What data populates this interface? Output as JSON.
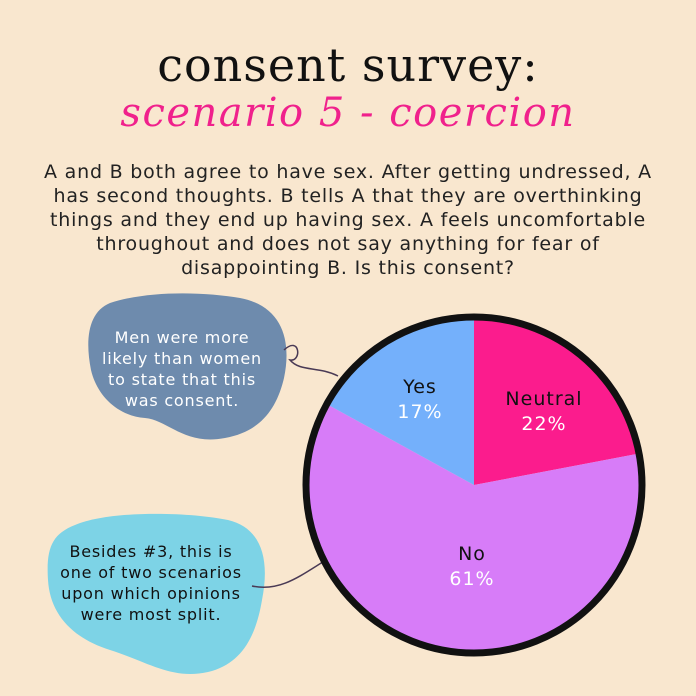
{
  "title": "consent survey:",
  "subtitle": "scenario 5 - coercion",
  "question": "A and B both agree to have sex. After getting undressed, A has second thoughts. B tells A that they are overthinking things and they end up having sex. A feels uncomfortable throughout and does not say anything for fear of disappointing B. Is this consent?",
  "notes": {
    "men": "Men were more likely than women to state that this was consent.",
    "split": "Besides #3, this is one of two scenarios upon which opinions were most split."
  },
  "colors": {
    "background": "#f9e7cf",
    "title": "#111111",
    "subtitle": "#f0218c",
    "note_men_blob": "#6e8bad",
    "note_split_blob": "#7dd3e6"
  },
  "chart_data": {
    "type": "pie",
    "start_angle_deg": 0,
    "direction": "clockwise",
    "slices": [
      {
        "label": "Neutral",
        "value": 22,
        "display": "22%",
        "color": "#fb1c8d",
        "text_color": "#111111",
        "value_color": "#ffffff"
      },
      {
        "label": "No",
        "value": 61,
        "display": "61%",
        "color": "#d77cf8",
        "text_color": "#111111",
        "value_color": "#ffffff"
      },
      {
        "label": "Yes",
        "value": 17,
        "display": "17%",
        "color": "#74b0fb",
        "text_color": "#111111",
        "value_color": "#ffffff"
      }
    ],
    "outline_color": "#111111"
  }
}
